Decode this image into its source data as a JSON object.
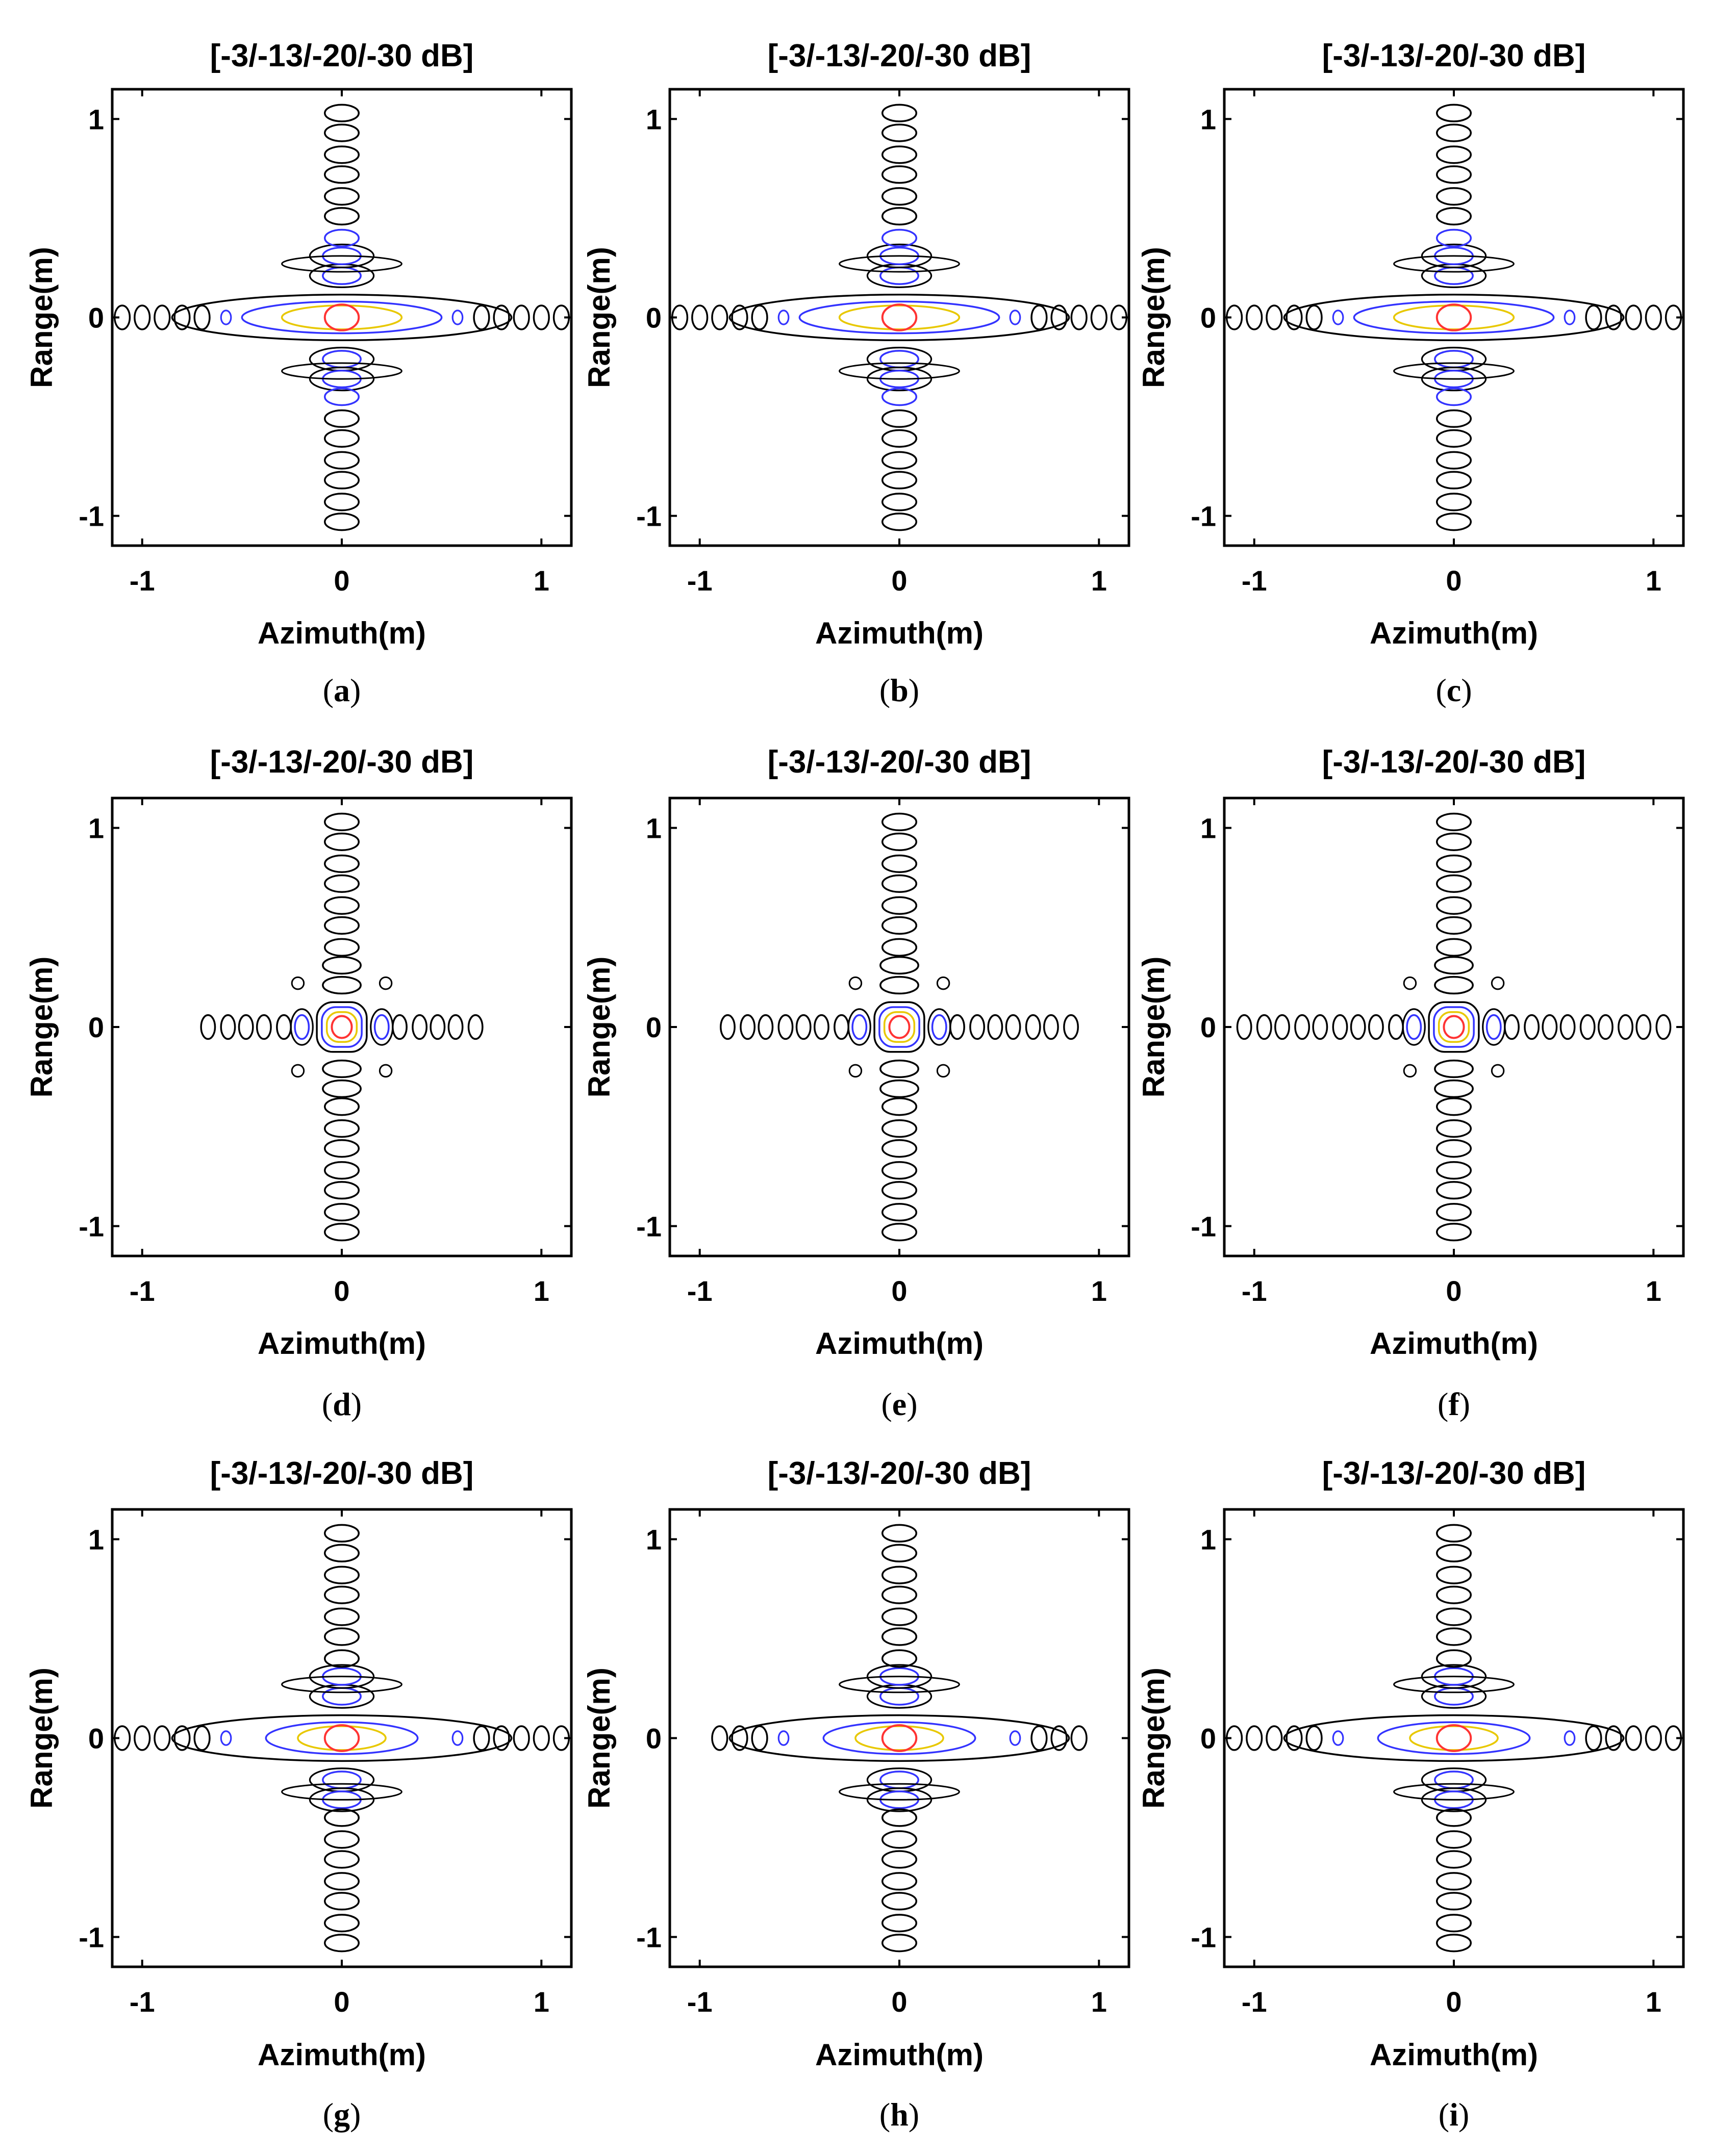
{
  "figure": {
    "contour_colors": {
      "-3 dB": "#ff3333",
      "-13 dB": "#e8c800",
      "-20 dB": "#3333ff",
      "-30 dB": "#000000"
    },
    "axes_color": "#000000"
  },
  "chart_data": [
    {
      "panel": "a",
      "caption": "a",
      "type": "contour",
      "title": "[-3/-13/-20/-30 dB]",
      "xlabel": "Azimuth(m)",
      "ylabel": "Range(m)",
      "xlim": [
        -1.15,
        1.15
      ],
      "ylim": [
        -1.15,
        1.15
      ],
      "xticks": [
        -1,
        0,
        1
      ],
      "yticks": [
        -1,
        0,
        1
      ],
      "levels_db": [
        -3,
        -13,
        -20,
        -30
      ],
      "azimuth_sidelobe_extent_m": 1.1,
      "range_sidelobe_extent_m": 1.05,
      "pattern": "broad"
    },
    {
      "panel": "b",
      "caption": "b",
      "type": "contour",
      "title": "[-3/-13/-20/-30 dB]",
      "xlabel": "Azimuth(m)",
      "ylabel": "Range(m)",
      "xlim": [
        -1.15,
        1.15
      ],
      "ylim": [
        -1.15,
        1.15
      ],
      "xticks": [
        -1,
        0,
        1
      ],
      "yticks": [
        -1,
        0,
        1
      ],
      "levels_db": [
        -3,
        -13,
        -20,
        -30
      ],
      "azimuth_sidelobe_extent_m": 1.1,
      "range_sidelobe_extent_m": 1.05,
      "pattern": "broad"
    },
    {
      "panel": "c",
      "caption": "c",
      "type": "contour",
      "title": "[-3/-13/-20/-30 dB]",
      "xlabel": "Azimuth(m)",
      "ylabel": "Range(m)",
      "xlim": [
        -1.15,
        1.15
      ],
      "ylim": [
        -1.15,
        1.15
      ],
      "xticks": [
        -1,
        0,
        1
      ],
      "yticks": [
        -1,
        0,
        1
      ],
      "levels_db": [
        -3,
        -13,
        -20,
        -30
      ],
      "azimuth_sidelobe_extent_m": 1.1,
      "range_sidelobe_extent_m": 1.05,
      "pattern": "broad"
    },
    {
      "panel": "d",
      "caption": "d",
      "type": "contour",
      "title": "[-3/-13/-20/-30 dB]",
      "xlabel": "Azimuth(m)",
      "ylabel": "Range(m)",
      "xlim": [
        -1.15,
        1.15
      ],
      "ylim": [
        -1.15,
        1.15
      ],
      "xticks": [
        -1,
        0,
        1
      ],
      "yticks": [
        -1,
        0,
        1
      ],
      "levels_db": [
        -3,
        -13,
        -20,
        -30
      ],
      "azimuth_sidelobe_extent_m": 0.75,
      "range_sidelobe_extent_m": 1.05,
      "pattern": "cross"
    },
    {
      "panel": "e",
      "caption": "e",
      "type": "contour",
      "title": "[-3/-13/-20/-30 dB]",
      "xlabel": "Azimuth(m)",
      "ylabel": "Range(m)",
      "xlim": [
        -1.15,
        1.15
      ],
      "ylim": [
        -1.15,
        1.15
      ],
      "xticks": [
        -1,
        0,
        1
      ],
      "yticks": [
        -1,
        0,
        1
      ],
      "levels_db": [
        -3,
        -13,
        -20,
        -30
      ],
      "azimuth_sidelobe_extent_m": 0.9,
      "range_sidelobe_extent_m": 1.05,
      "pattern": "cross"
    },
    {
      "panel": "f",
      "caption": "f",
      "type": "contour",
      "title": "[-3/-13/-20/-30 dB]",
      "xlabel": "Azimuth(m)",
      "ylabel": "Range(m)",
      "xlim": [
        -1.15,
        1.15
      ],
      "ylim": [
        -1.15,
        1.15
      ],
      "xticks": [
        -1,
        0,
        1
      ],
      "yticks": [
        -1,
        0,
        1
      ],
      "levels_db": [
        -3,
        -13,
        -20,
        -30
      ],
      "azimuth_sidelobe_extent_m": 1.1,
      "range_sidelobe_extent_m": 1.05,
      "pattern": "cross"
    },
    {
      "panel": "g",
      "caption": "g",
      "type": "contour",
      "title": "[-3/-13/-20/-30 dB]",
      "xlabel": "Azimuth(m)",
      "ylabel": "Range(m)",
      "xlim": [
        -1.15,
        1.15
      ],
      "ylim": [
        -1.15,
        1.15
      ],
      "xticks": [
        -1,
        0,
        1
      ],
      "yticks": [
        -1,
        0,
        1
      ],
      "levels_db": [
        -3,
        -13,
        -20,
        -30
      ],
      "azimuth_sidelobe_extent_m": 1.1,
      "range_sidelobe_extent_m": 1.05,
      "pattern": "medium"
    },
    {
      "panel": "h",
      "caption": "h",
      "type": "contour",
      "title": "[-3/-13/-20/-30 dB]",
      "xlabel": "Azimuth(m)",
      "ylabel": "Range(m)",
      "xlim": [
        -1.15,
        1.15
      ],
      "ylim": [
        -1.15,
        1.15
      ],
      "xticks": [
        -1,
        0,
        1
      ],
      "yticks": [
        -1,
        0,
        1
      ],
      "levels_db": [
        -3,
        -13,
        -20,
        -30
      ],
      "azimuth_sidelobe_extent_m": 0.9,
      "range_sidelobe_extent_m": 1.05,
      "pattern": "medium"
    },
    {
      "panel": "i",
      "caption": "i",
      "type": "contour",
      "title": "[-3/-13/-20/-30 dB]",
      "xlabel": "Azimuth(m)",
      "ylabel": "Range(m)",
      "xlim": [
        -1.15,
        1.15
      ],
      "ylim": [
        -1.15,
        1.15
      ],
      "xticks": [
        -1,
        0,
        1
      ],
      "yticks": [
        -1,
        0,
        1
      ],
      "levels_db": [
        -3,
        -13,
        -20,
        -30
      ],
      "azimuth_sidelobe_extent_m": 1.1,
      "range_sidelobe_extent_m": 1.05,
      "pattern": "medium"
    }
  ]
}
